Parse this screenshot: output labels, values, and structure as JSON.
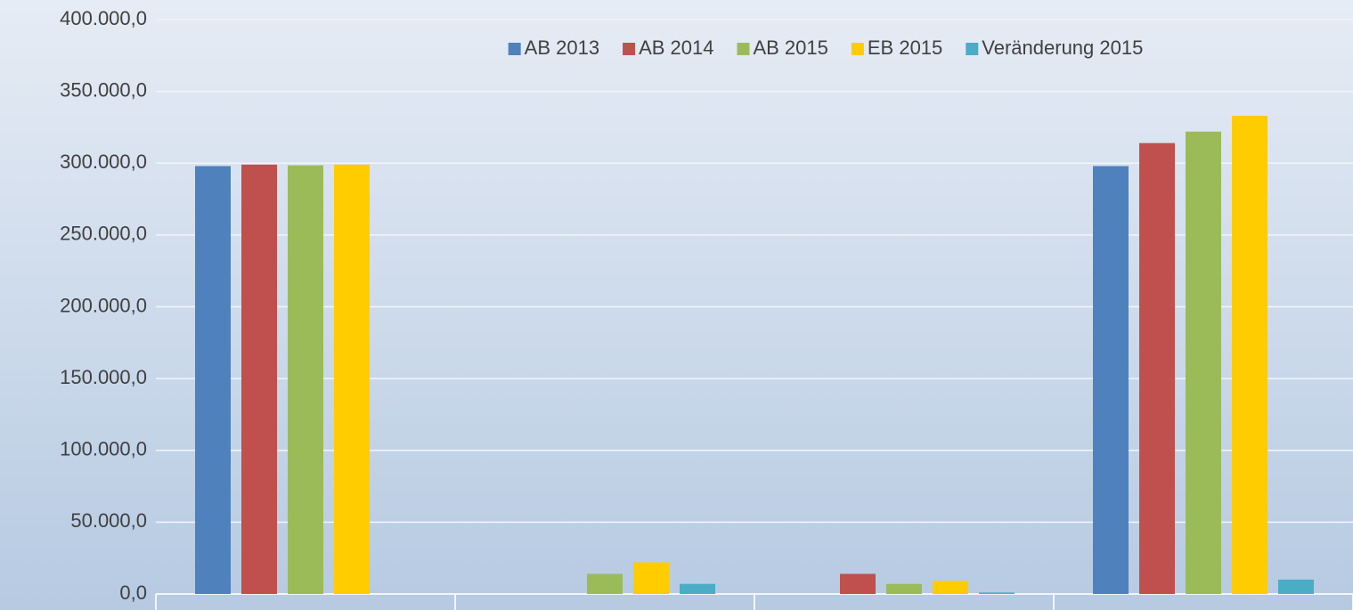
{
  "chart_data": {
    "type": "bar",
    "categories": [
      null,
      null,
      null,
      null
    ],
    "series": [
      {
        "name": "AB 2013",
        "color": "#4f81bd",
        "values": [
          298000,
          0,
          0,
          298000
        ]
      },
      {
        "name": "AB 2014",
        "color": "#c0504d",
        "values": [
          299000,
          0,
          14000,
          314000
        ]
      },
      {
        "name": "AB 2015",
        "color": "#9bbb59",
        "values": [
          298500,
          14000,
          7000,
          322000
        ]
      },
      {
        "name": "EB 2015",
        "color": "#ffcc00",
        "values": [
          299000,
          22000,
          9000,
          333000
        ]
      },
      {
        "name": "Veränderung 2015",
        "color": "#4bacc6",
        "values": [
          0,
          7000,
          1000,
          10000
        ]
      }
    ],
    "ylim": [
      0,
      400000
    ],
    "yticks": [
      {
        "value": 0,
        "label": "0,0"
      },
      {
        "value": 50000,
        "label": "50.000,0"
      },
      {
        "value": 100000,
        "label": "100.000,0"
      },
      {
        "value": 150000,
        "label": "150.000,0"
      },
      {
        "value": 200000,
        "label": "200.000,0"
      },
      {
        "value": 250000,
        "label": "250.000,0"
      },
      {
        "value": 300000,
        "label": "300.000,0"
      },
      {
        "value": 350000,
        "label": "350.000,0"
      },
      {
        "value": 400000,
        "label": "400.000,0"
      }
    ],
    "grid": true,
    "legend": "top"
  }
}
